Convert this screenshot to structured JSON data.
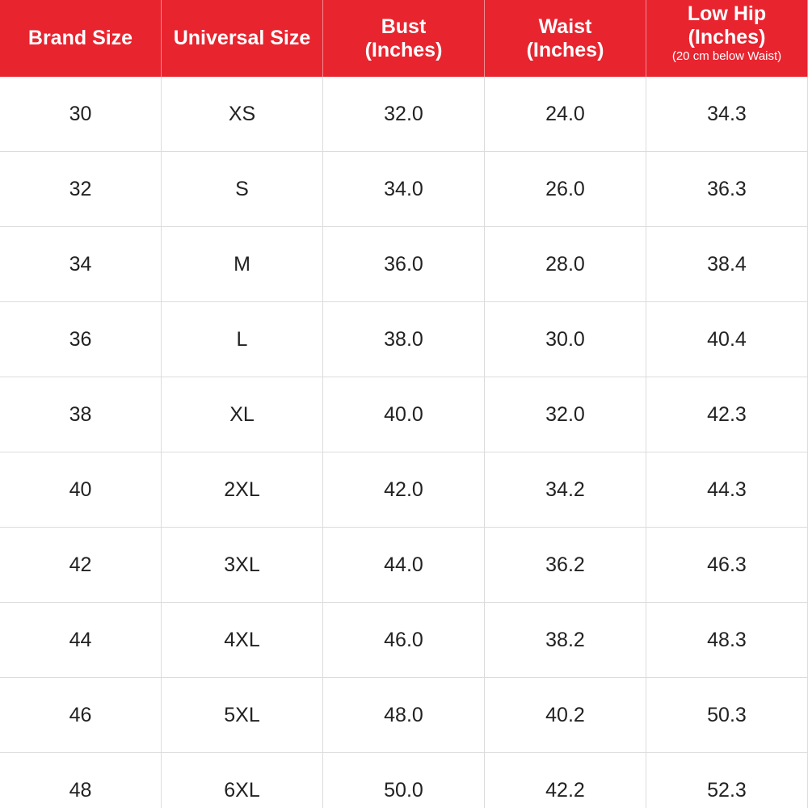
{
  "table": {
    "header": [
      {
        "lines": [
          "Brand Size"
        ]
      },
      {
        "lines": [
          "Universal Size"
        ]
      },
      {
        "lines": [
          "Bust",
          "(Inches)"
        ]
      },
      {
        "lines": [
          "Waist",
          "(Inches)"
        ]
      },
      {
        "lines": [
          "Low Hip",
          "(Inches)"
        ],
        "note": "(20 cm below Waist)"
      }
    ],
    "rows": [
      [
        "30",
        "XS",
        "32.0",
        "24.0",
        "34.3"
      ],
      [
        "32",
        "S",
        "34.0",
        "26.0",
        "36.3"
      ],
      [
        "34",
        "M",
        "36.0",
        "28.0",
        "38.4"
      ],
      [
        "36",
        "L",
        "38.0",
        "30.0",
        "40.4"
      ],
      [
        "38",
        "XL",
        "40.0",
        "32.0",
        "42.3"
      ],
      [
        "40",
        "2XL",
        "42.0",
        "34.2",
        "44.3"
      ],
      [
        "42",
        "3XL",
        "44.0",
        "36.2",
        "46.3"
      ],
      [
        "44",
        "4XL",
        "46.0",
        "38.2",
        "48.3"
      ],
      [
        "46",
        "5XL",
        "48.0",
        "40.2",
        "50.3"
      ],
      [
        "48",
        "6XL",
        "50.0",
        "42.2",
        "52.3"
      ]
    ]
  }
}
